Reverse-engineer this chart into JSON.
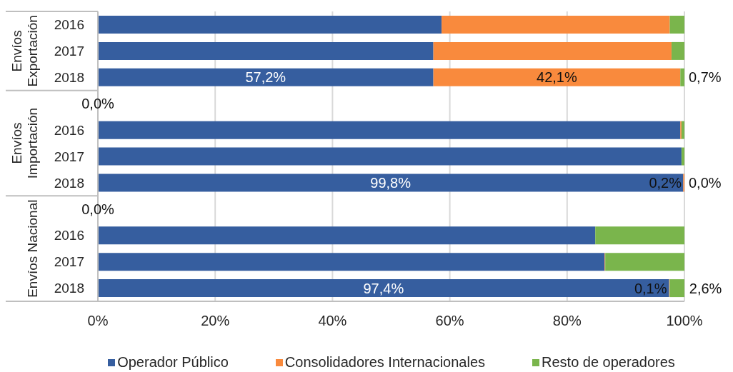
{
  "chart_data": {
    "type": "bar",
    "orientation": "horizontal",
    "stacked": true,
    "categories": [
      "2016",
      "2017",
      "2018",
      null,
      "2016",
      "2017",
      "2018",
      null,
      "2016",
      "2017",
      "2018"
    ],
    "series": [
      {
        "name": "Operador Público",
        "color": "#365e9f",
        "values": [
          58.6,
          57.2,
          57.2,
          0,
          99.3,
          99.5,
          99.8,
          0,
          84.8,
          86.4,
          97.4
        ],
        "value_labels": [
          null,
          null,
          "57,2%",
          "0,0%",
          null,
          null,
          "99,8%",
          "0,0%",
          null,
          null,
          "97,4%"
        ]
      },
      {
        "name": "Consolidadores Internacionales",
        "color": "#f98a3d",
        "values": [
          38.9,
          40.6,
          42.1,
          null,
          0.2,
          0.0,
          0.2,
          null,
          0.0,
          0.1,
          0.1
        ],
        "value_labels": [
          null,
          null,
          "42,1%",
          null,
          null,
          null,
          "0,2%",
          null,
          null,
          null,
          "0,1%"
        ]
      },
      {
        "name": "Resto de operadores",
        "color": "#7ab54c",
        "values": [
          2.5,
          2.2,
          0.7,
          null,
          0.5,
          0.5,
          0.0,
          null,
          15.2,
          13.5,
          2.6
        ],
        "value_labels": [
          null,
          null,
          "0,7%",
          null,
          null,
          null,
          "0,0%",
          null,
          null,
          null,
          "2,6%"
        ]
      }
    ],
    "xlim": [
      0,
      100
    ],
    "xticks": [
      {
        "value": 0,
        "label": "0%"
      },
      {
        "value": 20,
        "label": "20%"
      },
      {
        "value": 40,
        "label": "40%"
      },
      {
        "value": 60,
        "label": "60%"
      },
      {
        "value": 80,
        "label": "80%"
      },
      {
        "value": 100,
        "label": "100%"
      }
    ],
    "grid": "x",
    "legend": "bottom",
    "annotations": [
      "Envíos Exportación",
      "Envíos Importación",
      "Envíos Nacional"
    ]
  }
}
